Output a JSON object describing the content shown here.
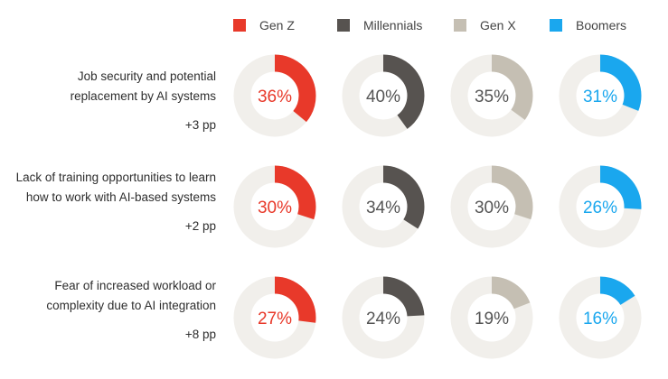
{
  "chart_data": {
    "type": "donut-grid",
    "legend": [
      {
        "name": "Gen Z",
        "color": "#e8392a"
      },
      {
        "name": "Millennials",
        "color": "#575350"
      },
      {
        "name": "Gen X",
        "color": "#c5bfb3"
      },
      {
        "name": "Boomers",
        "color": "#1aa7ee"
      }
    ],
    "colors": {
      "track": "#f1efeb",
      "text_default": "#555555"
    },
    "rows": [
      {
        "line1": "Job security and potential",
        "line2": "replacement by AI systems",
        "pp": "+3 pp",
        "values": [
          36,
          40,
          35,
          31
        ]
      },
      {
        "line1": "Lack of training opportunities to learn",
        "line2": "how to work with AI-based systems",
        "pp": "+2 pp",
        "values": [
          30,
          34,
          30,
          26
        ]
      },
      {
        "line1": "Fear of increased workload or",
        "line2": "complexity due to AI integration",
        "pp": "+8 pp",
        "values": [
          27,
          24,
          19,
          16
        ]
      }
    ]
  }
}
